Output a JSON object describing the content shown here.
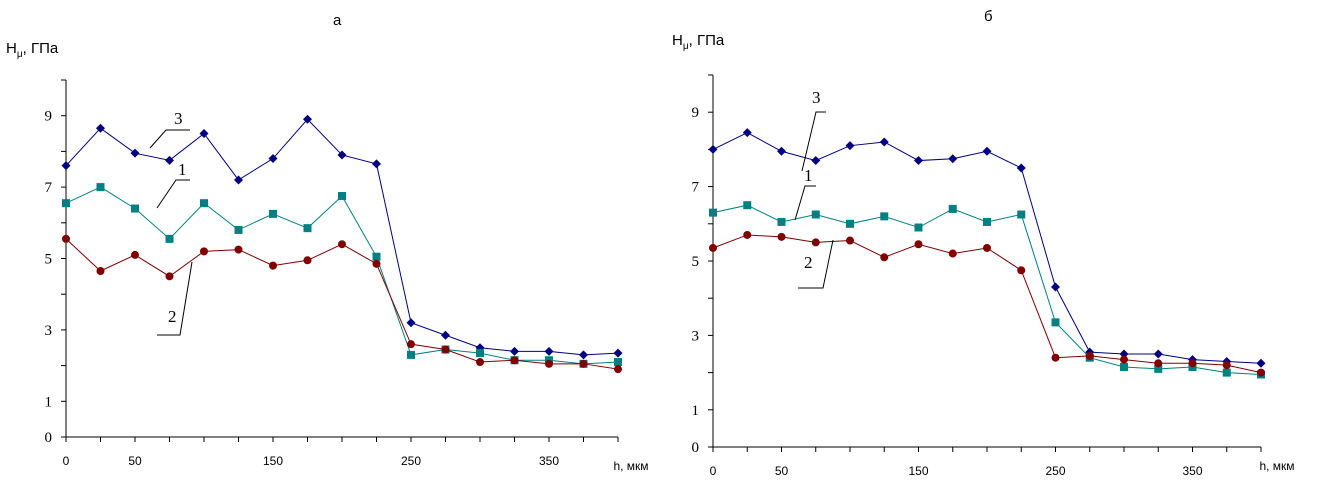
{
  "chart_data": [
    {
      "type": "line",
      "title": "а",
      "ylabel": "H",
      "ylabel_sub": "μ",
      "ylabel_unit": ", ГПа",
      "xlabel": "h, мкм",
      "xlim": [
        0,
        400
      ],
      "ylim": [
        0,
        10
      ],
      "x_ticks": [
        "0",
        "50",
        "150",
        "250",
        "350"
      ],
      "y_ticks": [
        "0",
        "1",
        "3",
        "5",
        "7",
        "9"
      ],
      "grid": false,
      "x": [
        0,
        25,
        50,
        75,
        100,
        125,
        150,
        175,
        200,
        225,
        250,
        275,
        300,
        325,
        350,
        375,
        400
      ],
      "series": [
        {
          "name": "3",
          "color": "#000080",
          "marker": "diamond",
          "values": [
            7.6,
            8.65,
            7.95,
            7.75,
            8.5,
            7.2,
            7.8,
            8.9,
            7.9,
            7.65,
            3.2,
            2.85,
            2.5,
            2.4,
            2.4,
            2.3,
            2.35
          ]
        },
        {
          "name": "1",
          "color": "#008080",
          "marker": "square",
          "values": [
            6.55,
            7.0,
            6.4,
            5.55,
            6.55,
            5.8,
            6.25,
            5.85,
            6.75,
            5.05,
            2.3,
            2.45,
            2.35,
            2.15,
            2.15,
            2.05,
            2.1
          ]
        },
        {
          "name": "2",
          "color": "#800000",
          "marker": "circle",
          "values": [
            5.55,
            4.65,
            5.1,
            4.5,
            5.2,
            5.25,
            4.8,
            4.95,
            5.4,
            4.85,
            2.6,
            2.45,
            2.1,
            2.15,
            2.05,
            2.05,
            1.9
          ]
        }
      ],
      "curve_labels": [
        "3",
        "1",
        "2"
      ]
    },
    {
      "type": "line",
      "title": "б",
      "ylabel": "H",
      "ylabel_sub": "μ",
      "ylabel_unit": ", ГПа",
      "xlabel": "h, мкм",
      "xlim": [
        0,
        400
      ],
      "ylim": [
        0,
        10
      ],
      "x_ticks": [
        "0",
        "50",
        "150",
        "250",
        "350"
      ],
      "y_ticks": [
        "0",
        "1",
        "3",
        "5",
        "7",
        "9"
      ],
      "grid": false,
      "x": [
        0,
        25,
        50,
        75,
        100,
        125,
        150,
        175,
        200,
        225,
        250,
        275,
        300,
        325,
        350,
        375,
        400
      ],
      "series": [
        {
          "name": "3",
          "color": "#000080",
          "marker": "diamond",
          "values": [
            8.0,
            8.45,
            7.95,
            7.7,
            8.1,
            8.2,
            7.7,
            7.75,
            7.95,
            7.5,
            4.3,
            2.55,
            2.5,
            2.5,
            2.35,
            2.3,
            2.25
          ]
        },
        {
          "name": "1",
          "color": "#008080",
          "marker": "square",
          "values": [
            6.3,
            6.5,
            6.05,
            6.25,
            6.0,
            6.2,
            5.9,
            6.4,
            6.05,
            6.25,
            3.35,
            2.4,
            2.15,
            2.1,
            2.15,
            2.0,
            1.95
          ]
        },
        {
          "name": "2",
          "color": "#800000",
          "marker": "circle",
          "values": [
            5.35,
            5.7,
            5.65,
            5.5,
            5.55,
            5.1,
            5.45,
            5.2,
            5.35,
            4.75,
            2.4,
            2.45,
            2.35,
            2.25,
            2.25,
            2.2,
            2.0
          ]
        }
      ],
      "curve_labels": [
        "3",
        "1",
        "2"
      ]
    }
  ]
}
